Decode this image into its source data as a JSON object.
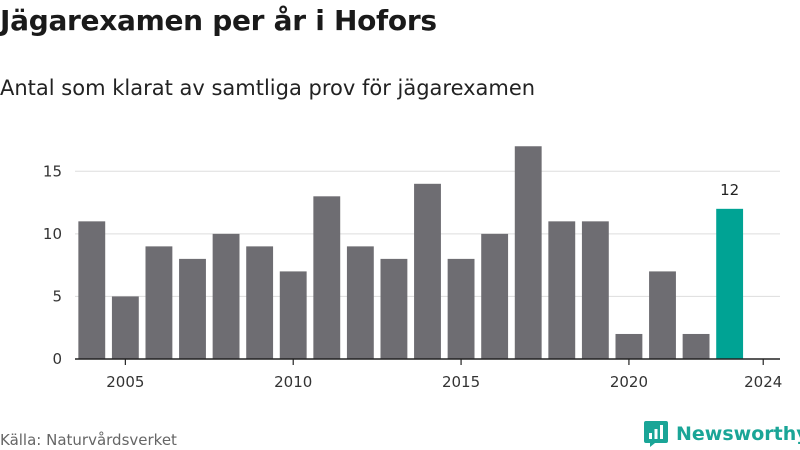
{
  "title": "Jägarexamen per år i Hofors",
  "subtitle": "Antal som klarat av samtliga prov för jägarexamen",
  "source": "Källa: Naturvårdsverket",
  "brand": "Newsworthy",
  "colors": {
    "bar": "#6e6d72",
    "highlight": "#00a394",
    "grid": "#dddddd",
    "brand": "#1aa597"
  },
  "chart_data": {
    "type": "bar",
    "x": [
      2004,
      2005,
      2006,
      2007,
      2008,
      2009,
      2010,
      2011,
      2012,
      2013,
      2014,
      2015,
      2016,
      2017,
      2018,
      2019,
      2020,
      2021,
      2022,
      2023,
      2024
    ],
    "values": [
      11,
      5,
      9,
      8,
      10,
      9,
      7,
      13,
      9,
      8,
      14,
      8,
      10,
      17,
      11,
      11,
      2,
      7,
      2,
      12,
      null
    ],
    "x_tick_labels": [
      "2005",
      "2010",
      "2015",
      "2020",
      "2024"
    ],
    "y_ticks": [
      0,
      5,
      10,
      15
    ],
    "ylim": [
      0,
      17.5
    ],
    "highlight_index": 19,
    "data_labels": [
      {
        "index": 19,
        "text": "12"
      }
    ],
    "grid": true
  }
}
